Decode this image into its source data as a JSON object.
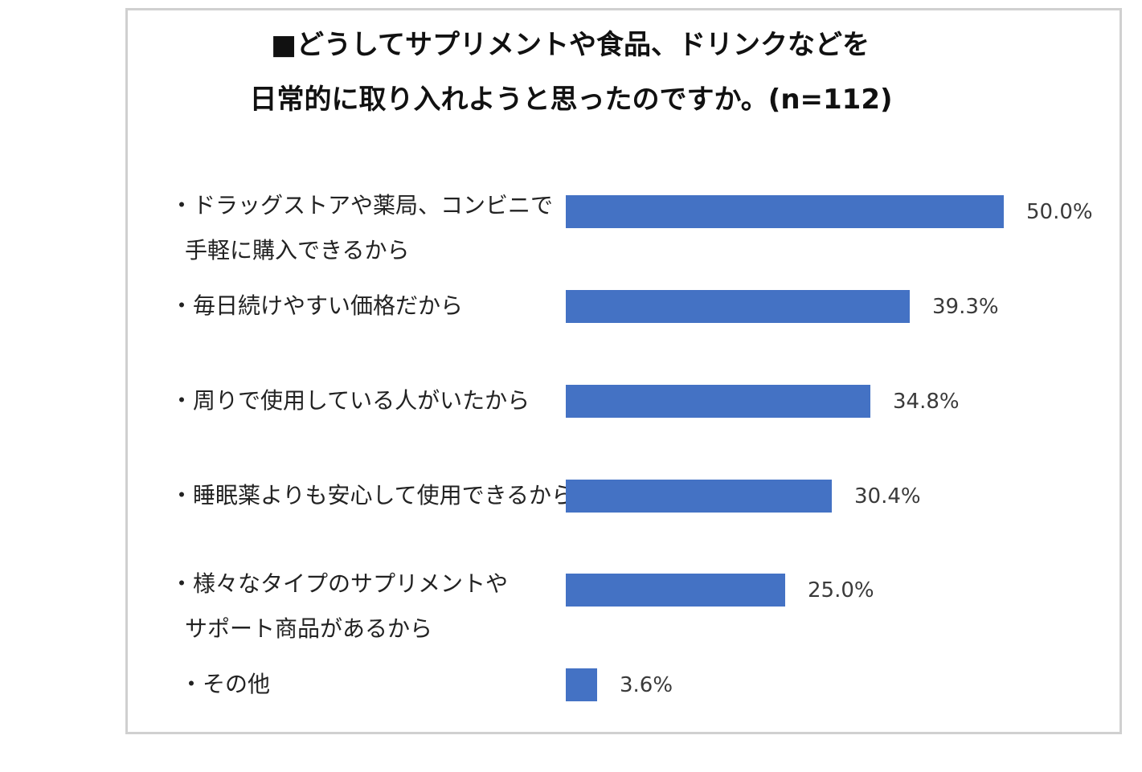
{
  "chart_data": {
    "type": "bar",
    "orientation": "horizontal",
    "title": {
      "line1": "■どうしてサプリメントや食品、ドリンクなどを",
      "line2": "日常的に取り入れようと思ったのですか。(n=112)"
    },
    "categories": [
      {
        "line1": "・ドラッグストアや薬局、コンビニで",
        "line2": "手軽に購入できるから"
      },
      {
        "line1": "・毎日続けやすい価格だから",
        "line2": ""
      },
      {
        "line1": "・周りで使用している人がいたから",
        "line2": ""
      },
      {
        "line1": "・睡眠薬よりも安心して使用できるから",
        "line2": ""
      },
      {
        "line1": "・様々なタイプのサプリメントや",
        "line2": "サポート商品があるから"
      },
      {
        "line1": "・その他",
        "line2": ""
      }
    ],
    "values": [
      50.0,
      39.3,
      34.8,
      30.4,
      25.0,
      3.6
    ],
    "value_labels": [
      "50.0%",
      "39.3%",
      "34.8%",
      "30.4%",
      "25.0%",
      "3.6%"
    ],
    "unit": "%",
    "xlim": [
      0,
      50
    ],
    "grid": false,
    "legend": "none",
    "bar_color": "#4472c4"
  }
}
